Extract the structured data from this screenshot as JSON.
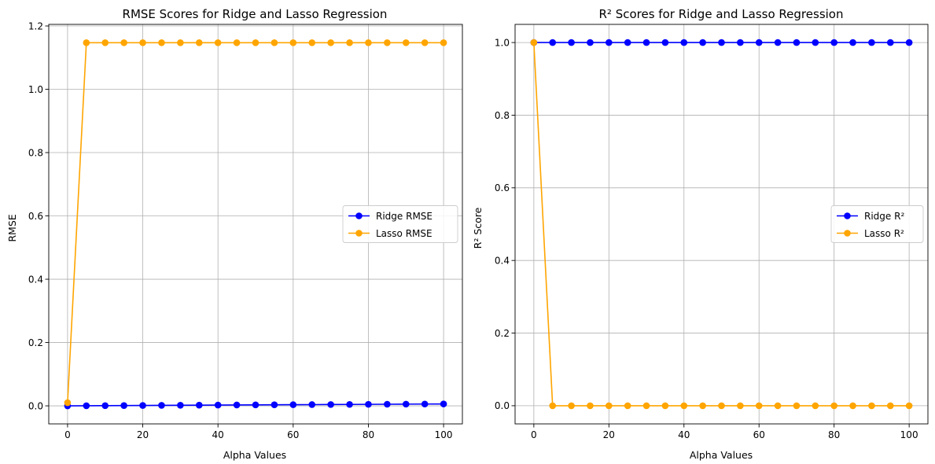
{
  "chart_data": [
    {
      "type": "line",
      "title": "RMSE Scores for Ridge and Lasso Regression",
      "xlabel": "Alpha Values",
      "ylabel": "RMSE",
      "xlim": [
        -5,
        105
      ],
      "ylim": [
        -0.057,
        1.205
      ],
      "xticks": [
        0,
        20,
        40,
        60,
        80,
        100
      ],
      "yticks": [
        0.0,
        0.2,
        0.4,
        0.6,
        0.8,
        1.0,
        1.2
      ],
      "ytick_labels": [
        "0.0",
        "0.2",
        "0.4",
        "0.6",
        "0.8",
        "1.0",
        "1.2"
      ],
      "xtick_labels": [
        "0",
        "20",
        "40",
        "60",
        "80",
        "100"
      ],
      "grid": true,
      "legend_position": "center-right",
      "x": [
        0,
        5,
        10,
        15,
        20,
        25,
        30,
        35,
        40,
        45,
        50,
        55,
        60,
        65,
        70,
        75,
        80,
        85,
        90,
        95,
        100
      ],
      "series": [
        {
          "name": "Ridge RMSE",
          "color": "#0000ff",
          "values": [
            0.0,
            0.0003,
            0.0006,
            0.0009,
            0.0012,
            0.0015,
            0.0018,
            0.0021,
            0.0024,
            0.0027,
            0.003,
            0.0033,
            0.0036,
            0.0039,
            0.0042,
            0.0045,
            0.0048,
            0.0051,
            0.0054,
            0.0057,
            0.006
          ]
        },
        {
          "name": "Lasso RMSE",
          "color": "#ffa500",
          "values": [
            0.01,
            1.147,
            1.147,
            1.147,
            1.147,
            1.147,
            1.147,
            1.147,
            1.147,
            1.147,
            1.147,
            1.147,
            1.147,
            1.147,
            1.147,
            1.147,
            1.147,
            1.147,
            1.147,
            1.147,
            1.147
          ]
        }
      ]
    },
    {
      "type": "line",
      "title": "R² Scores for Ridge and Lasso Regression",
      "xlabel": "Alpha Values",
      "ylabel": "R² Score",
      "xlim": [
        -5,
        105
      ],
      "ylim": [
        -0.05,
        1.05
      ],
      "xticks": [
        0,
        20,
        40,
        60,
        80,
        100
      ],
      "yticks": [
        0.0,
        0.2,
        0.4,
        0.6,
        0.8,
        1.0
      ],
      "ytick_labels": [
        "0.0",
        "0.2",
        "0.4",
        "0.6",
        "0.8",
        "1.0"
      ],
      "xtick_labels": [
        "0",
        "20",
        "40",
        "60",
        "80",
        "100"
      ],
      "grid": true,
      "legend_position": "center-right",
      "x": [
        0,
        5,
        10,
        15,
        20,
        25,
        30,
        35,
        40,
        45,
        50,
        55,
        60,
        65,
        70,
        75,
        80,
        85,
        90,
        95,
        100
      ],
      "series": [
        {
          "name": "Ridge R²",
          "color": "#0000ff",
          "values": [
            1.0,
            1.0,
            1.0,
            1.0,
            1.0,
            1.0,
            1.0,
            1.0,
            1.0,
            1.0,
            1.0,
            1.0,
            1.0,
            1.0,
            1.0,
            1.0,
            1.0,
            1.0,
            1.0,
            1.0,
            1.0
          ]
        },
        {
          "name": "Lasso R²",
          "color": "#ffa500",
          "values": [
            1.0,
            0.0,
            0.0,
            0.0,
            0.0,
            0.0,
            0.0,
            0.0,
            0.0,
            0.0,
            0.0,
            0.0,
            0.0,
            0.0,
            0.0,
            0.0,
            0.0,
            0.0,
            0.0,
            0.0,
            0.0
          ]
        }
      ]
    }
  ]
}
